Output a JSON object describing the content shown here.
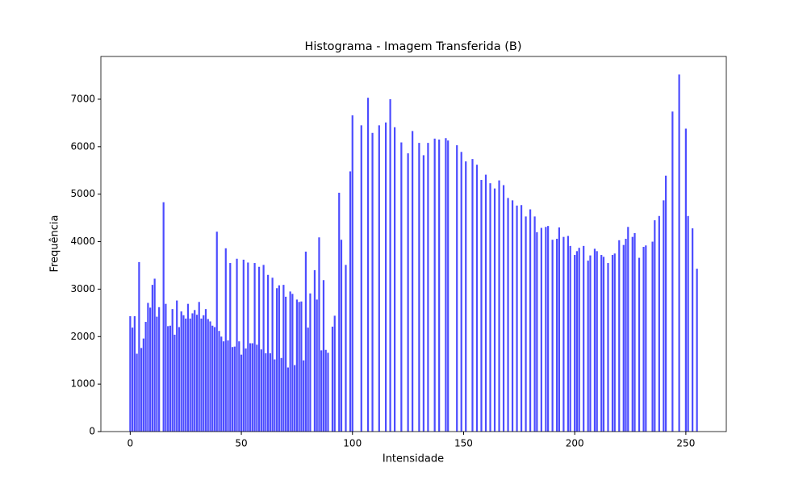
{
  "chart_data": {
    "type": "bar",
    "title": "Histograma - Imagem Transferida (B)",
    "x_label": "Intensidade",
    "y_label": "Frequência",
    "color": "#4c4cff",
    "x": [
      0,
      1,
      2,
      3,
      4,
      5,
      6,
      7,
      8,
      9,
      10,
      11,
      12,
      13,
      14,
      15,
      16,
      17,
      18,
      19,
      20,
      21,
      22,
      23,
      24,
      25,
      26,
      27,
      28,
      29,
      30,
      31,
      32,
      33,
      34,
      35,
      36,
      37,
      38,
      39,
      40,
      41,
      42,
      43,
      44,
      45,
      46,
      47,
      48,
      49,
      50,
      51,
      52,
      53,
      54,
      55,
      56,
      57,
      58,
      59,
      60,
      61,
      62,
      63,
      64,
      65,
      66,
      67,
      68,
      69,
      70,
      71,
      72,
      73,
      74,
      75,
      76,
      77,
      78,
      79,
      80,
      81,
      82,
      83,
      84,
      85,
      86,
      87,
      88,
      89,
      90,
      91,
      92,
      93,
      94,
      95,
      96,
      97,
      98,
      99,
      100,
      101,
      102,
      103,
      104,
      105,
      106,
      107,
      108,
      109,
      110,
      111,
      112,
      113,
      114,
      115,
      116,
      117,
      118,
      119,
      120,
      121,
      122,
      123,
      124,
      125,
      126,
      127,
      128,
      129,
      130,
      131,
      132,
      133,
      134,
      135,
      136,
      137,
      138,
      139,
      140,
      141,
      142,
      143,
      144,
      145,
      146,
      147,
      148,
      149,
      150,
      151,
      152,
      153,
      154,
      155,
      156,
      157,
      158,
      159,
      160,
      161,
      162,
      163,
      164,
      165,
      166,
      167,
      168,
      169,
      170,
      171,
      172,
      173,
      174,
      175,
      176,
      177,
      178,
      179,
      180,
      181,
      182,
      183,
      184,
      185,
      186,
      187,
      188,
      189,
      190,
      191,
      192,
      193,
      194,
      195,
      196,
      197,
      198,
      199,
      200,
      201,
      202,
      203,
      204,
      205,
      206,
      207,
      208,
      209,
      210,
      211,
      212,
      213,
      214,
      215,
      216,
      217,
      218,
      219,
      220,
      221,
      222,
      223,
      224,
      225,
      226,
      227,
      228,
      229,
      230,
      231,
      232,
      233,
      234,
      235,
      236,
      237,
      238,
      239,
      240,
      241,
      242,
      243,
      244,
      245,
      246,
      247,
      248,
      249,
      250,
      251,
      252,
      253,
      254,
      255
    ],
    "values": [
      2430,
      2190,
      2430,
      1640,
      3570,
      1760,
      1960,
      2310,
      2710,
      2610,
      3090,
      3220,
      2420,
      2620,
      0,
      4830,
      2690,
      2220,
      2230,
      2580,
      2040,
      2760,
      2200,
      2530,
      2450,
      2380,
      2690,
      2380,
      2490,
      2560,
      2460,
      2730,
      2380,
      2450,
      2580,
      2370,
      2320,
      2230,
      2200,
      4210,
      2120,
      2000,
      1900,
      3860,
      1920,
      3550,
      1780,
      1790,
      3640,
      1900,
      1620,
      3620,
      1750,
      3560,
      1860,
      1860,
      3550,
      1830,
      3470,
      1730,
      3510,
      1650,
      3300,
      1650,
      3240,
      1520,
      3020,
      3080,
      1550,
      3090,
      2840,
      1350,
      2950,
      2900,
      1400,
      2780,
      2730,
      2740,
      1500,
      3790,
      2190,
      2910,
      0,
      3400,
      2780,
      4090,
      1710,
      3190,
      1720,
      1660,
      0,
      2210,
      2440,
      0,
      5030,
      4040,
      0,
      3510,
      0,
      5480,
      6660,
      0,
      0,
      0,
      6450,
      0,
      0,
      7030,
      0,
      6290,
      0,
      0,
      6450,
      0,
      0,
      6510,
      0,
      7000,
      0,
      6410,
      0,
      0,
      6090,
      0,
      0,
      5860,
      0,
      6330,
      0,
      0,
      6080,
      0,
      5820,
      0,
      6080,
      0,
      0,
      6170,
      0,
      6150,
      0,
      0,
      6180,
      6130,
      0,
      0,
      0,
      6030,
      0,
      5890,
      0,
      5690,
      0,
      0,
      5740,
      0,
      5620,
      0,
      5300,
      0,
      5410,
      0,
      5230,
      0,
      5120,
      0,
      5290,
      0,
      5190,
      0,
      4920,
      0,
      4870,
      0,
      4760,
      0,
      4770,
      0,
      4530,
      0,
      4680,
      0,
      4530,
      4200,
      0,
      4290,
      0,
      4310,
      4330,
      0,
      4040,
      0,
      4060,
      4300,
      0,
      4100,
      0,
      4120,
      3910,
      0,
      3720,
      3800,
      3870,
      0,
      3910,
      0,
      3600,
      3710,
      0,
      3850,
      3800,
      0,
      3720,
      3680,
      0,
      3550,
      0,
      3720,
      3750,
      0,
      4030,
      0,
      3930,
      4060,
      4310,
      0,
      4100,
      4180,
      0,
      3660,
      0,
      3890,
      3920,
      0,
      0,
      4000,
      4450,
      0,
      4540,
      0,
      4870,
      5390,
      0,
      0,
      6740,
      0,
      0,
      7520,
      0,
      0,
      6380,
      4540,
      0,
      4280,
      0,
      3430
    ],
    "xlim": [
      -13.2,
      268.2
    ],
    "ylim": [
      0,
      7900
    ],
    "xticks": [
      0,
      50,
      100,
      150,
      200,
      250
    ],
    "yticks": [
      0,
      1000,
      2000,
      3000,
      4000,
      5000,
      6000,
      7000
    ]
  }
}
